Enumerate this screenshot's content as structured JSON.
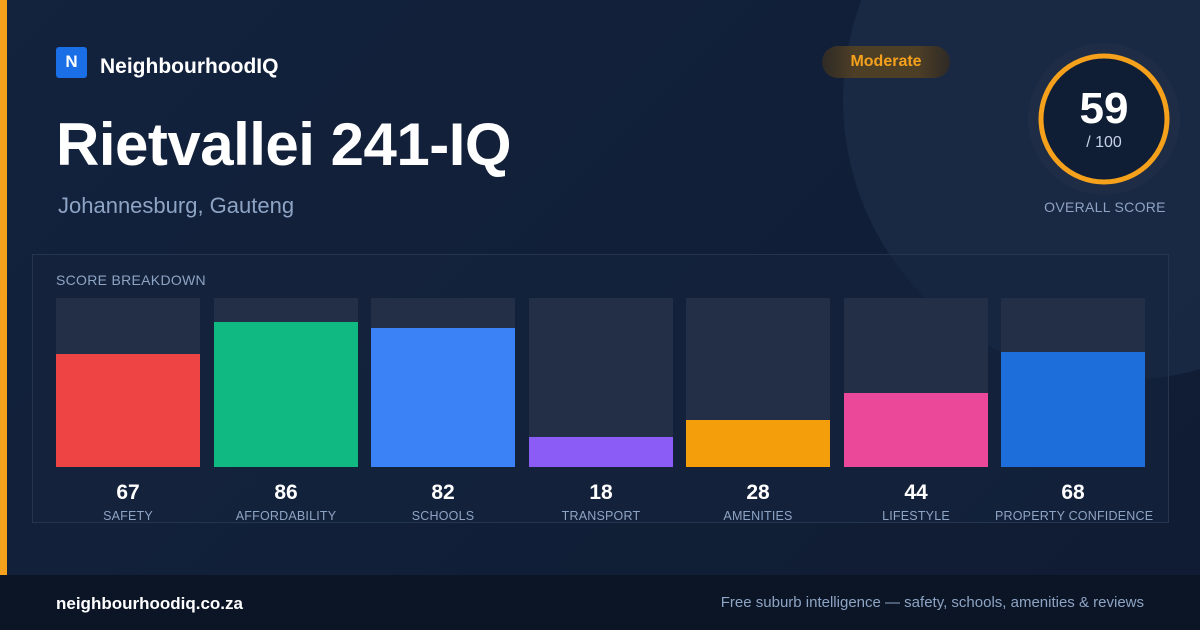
{
  "brand": {
    "logo_letter": "N",
    "name": "NeighbourhoodIQ"
  },
  "suburb": {
    "name": "Rietvallei 241-IQ",
    "location": "Johannesburg, Gauteng"
  },
  "rating_badge": {
    "label": "Moderate",
    "color": "#f5a11c"
  },
  "overall": {
    "score": "59",
    "max_label": "/ 100",
    "label": "OVERALL SCORE",
    "fraction": 0.59,
    "ring_color": "#f5a11c"
  },
  "breakdown": {
    "title": "SCORE BREAKDOWN",
    "items": [
      {
        "label": "SAFETY",
        "value": "67",
        "color": "#ef4444"
      },
      {
        "label": "AFFORDABILITY",
        "value": "86",
        "color": "#10b981"
      },
      {
        "label": "SCHOOLS",
        "value": "82",
        "color": "#3b82f6"
      },
      {
        "label": "TRANSPORT",
        "value": "18",
        "color": "#8b5cf6"
      },
      {
        "label": "AMENITIES",
        "value": "28",
        "color": "#f59e0b"
      },
      {
        "label": "LIFESTYLE",
        "value": "44",
        "color": "#ec4899"
      },
      {
        "label": "PROPERTY CONFIDENCE",
        "value": "68",
        "color": "#1d6ddb"
      }
    ]
  },
  "footer": {
    "url": "neighbourhoodiq.co.za",
    "tagline": "Free suburb intelligence — safety, schools, amenities & reviews"
  }
}
